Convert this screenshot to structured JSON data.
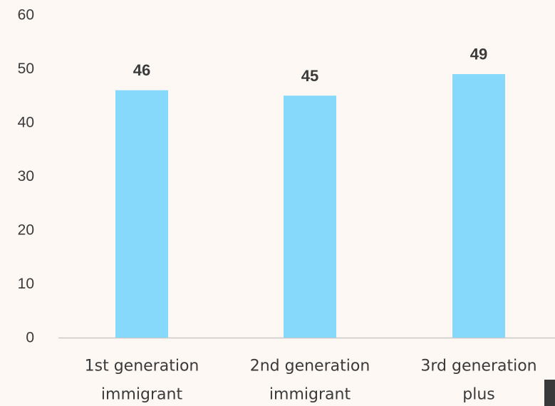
{
  "chart_data": {
    "type": "bar",
    "categories": [
      [
        "1st generation",
        "immigrant"
      ],
      [
        "2nd generation",
        "immigrant"
      ],
      [
        "3rd generation",
        "plus"
      ]
    ],
    "values": [
      46,
      45,
      49
    ],
    "data_labels": [
      "46",
      "45",
      "49"
    ],
    "yticks": [
      "0",
      "10",
      "20",
      "30",
      "40",
      "50",
      "60"
    ],
    "ylim": [
      0,
      60
    ],
    "grid": false,
    "legend": "none",
    "bar_color": "#87d9fb",
    "baseline_color": "#c8c8c8",
    "text_color": "#3a3a3a"
  }
}
